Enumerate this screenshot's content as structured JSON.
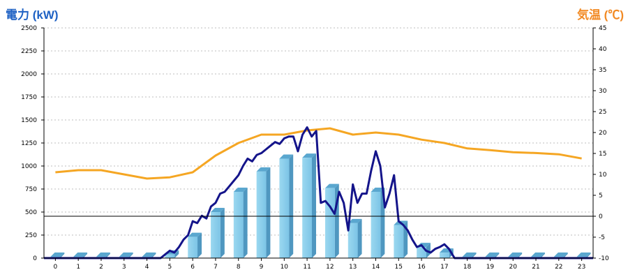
{
  "header": {
    "left_title": "電力 (kW)",
    "right_title": "気温 (℃)"
  },
  "chart_data": {
    "type": "bar",
    "categories": [
      "0",
      "1",
      "2",
      "3",
      "4",
      "5",
      "6",
      "7",
      "8",
      "9",
      "10",
      "11",
      "12",
      "13",
      "14",
      "15",
      "16",
      "17",
      "18",
      "19",
      "20",
      "21",
      "22",
      "23"
    ],
    "bar_values": [
      0,
      0,
      0,
      0,
      0,
      40,
      230,
      500,
      720,
      940,
      1080,
      1090,
      760,
      380,
      720,
      360,
      120,
      60,
      0,
      0,
      0,
      0,
      0,
      0
    ],
    "power_line": {
      "x": [
        4.6,
        4.8,
        5.0,
        5.2,
        5.4,
        5.6,
        5.8,
        6.0,
        6.2,
        6.4,
        6.6,
        6.8,
        7.0,
        7.2,
        7.4,
        7.6,
        7.8,
        8.0,
        8.2,
        8.4,
        8.6,
        8.8,
        9.0,
        9.2,
        9.4,
        9.6,
        9.8,
        10.0,
        10.2,
        10.4,
        10.6,
        10.8,
        11.0,
        11.2,
        11.4,
        11.6,
        11.8,
        12.0,
        12.2,
        12.4,
        12.6,
        12.8,
        13.0,
        13.2,
        13.4,
        13.6,
        13.8,
        14.0,
        14.2,
        14.4,
        14.6,
        14.8,
        15.0,
        15.2,
        15.4,
        15.6,
        15.8,
        16.0,
        16.2,
        16.4,
        16.6,
        16.8,
        17.0,
        17.2
      ],
      "y": [
        0,
        40,
        80,
        60,
        120,
        200,
        250,
        400,
        380,
        460,
        430,
        560,
        600,
        700,
        720,
        780,
        840,
        900,
        1000,
        1080,
        1050,
        1120,
        1140,
        1180,
        1220,
        1260,
        1240,
        1300,
        1320,
        1320,
        1160,
        1340,
        1420,
        1320,
        1380,
        600,
        620,
        560,
        480,
        720,
        600,
        300,
        800,
        600,
        700,
        700,
        950,
        1160,
        1000,
        550,
        700,
        900,
        400,
        360,
        300,
        200,
        120,
        140,
        80,
        60,
        100,
        120,
        150,
        100
      ],
      "color": "#14148a"
    },
    "temperature_line": {
      "x": [
        0,
        1,
        2,
        3,
        4,
        5,
        6,
        7,
        8,
        9,
        10,
        11,
        12,
        13,
        14,
        15,
        16,
        17,
        18,
        19,
        20,
        21,
        22,
        23
      ],
      "y": [
        10.5,
        11,
        11,
        10,
        9,
        9.3,
        10.5,
        14.5,
        17.5,
        19.5,
        19.5,
        20.5,
        21,
        19.5,
        20,
        19.5,
        18.3,
        17.5,
        16.2,
        15.8,
        15.3,
        15.1,
        14.8,
        13.8
      ],
      "color": "#f5a623"
    },
    "left_axis": {
      "label": "電力 (kW)",
      "ylim": [
        0,
        2500
      ],
      "ticks": [
        0,
        250,
        500,
        750,
        1000,
        1250,
        1500,
        1750,
        2000,
        2250,
        2500
      ]
    },
    "right_axis": {
      "label": "気温 (℃)",
      "ylim": [
        -10,
        45
      ],
      "ticks": [
        -10,
        -5,
        0,
        5,
        10,
        15,
        20,
        25,
        30,
        35,
        40,
        45
      ]
    },
    "bar_color": "#87ceeb",
    "grid": true
  }
}
